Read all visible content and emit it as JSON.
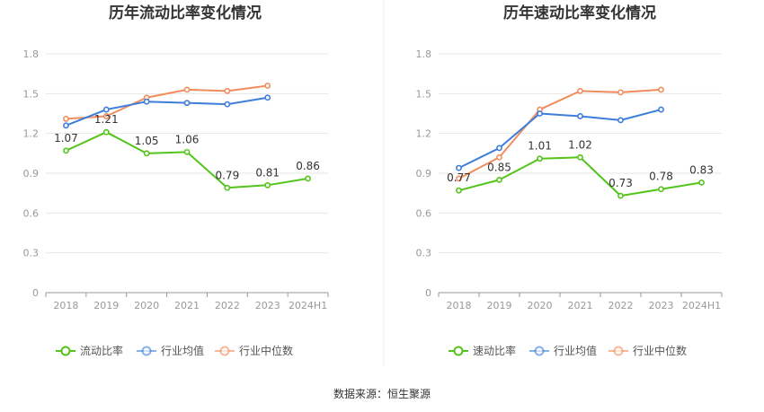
{
  "source_text": "数据来源：恒生聚源",
  "colors": {
    "company": "#52c41a",
    "industry_avg": "#3d7ddc",
    "industry_median": "#f28c5c",
    "grid": "#e6e6e6",
    "axis": "#999999"
  },
  "chart_data": [
    {
      "type": "line",
      "title": "历年流动比率变化情况",
      "categories": [
        "2018",
        "2019",
        "2020",
        "2021",
        "2022",
        "2023",
        "2024H1"
      ],
      "ylim": [
        0,
        1.8
      ],
      "yticks": [
        "0",
        "0.3",
        "0.6",
        "0.9",
        "1.2",
        "1.5",
        "1.8"
      ],
      "grid": true,
      "legend_position": "bottom",
      "series": [
        {
          "name": "流动比率",
          "values": [
            1.07,
            1.21,
            1.05,
            1.06,
            0.79,
            0.81,
            0.86
          ],
          "labels": [
            "1.07",
            "1.21",
            "1.05",
            "1.06",
            "0.79",
            "0.81",
            "0.86"
          ]
        },
        {
          "name": "行业均值",
          "values": [
            1.26,
            1.38,
            1.44,
            1.43,
            1.42,
            1.47,
            null
          ]
        },
        {
          "name": "行业中位数",
          "values": [
            1.31,
            1.33,
            1.47,
            1.53,
            1.52,
            1.56,
            null
          ]
        }
      ]
    },
    {
      "type": "line",
      "title": "历年速动比率变化情况",
      "categories": [
        "2018",
        "2019",
        "2020",
        "2021",
        "2022",
        "2023",
        "2024H1"
      ],
      "ylim": [
        0,
        1.8
      ],
      "yticks": [
        "0",
        "0.3",
        "0.6",
        "0.9",
        "1.2",
        "1.5",
        "1.8"
      ],
      "grid": true,
      "legend_position": "bottom",
      "series": [
        {
          "name": "速动比率",
          "values": [
            0.77,
            0.85,
            1.01,
            1.02,
            0.73,
            0.78,
            0.83
          ],
          "labels": [
            "0.77",
            "0.85",
            "1.01",
            "1.02",
            "0.73",
            "0.78",
            "0.83"
          ]
        },
        {
          "name": "行业均值",
          "values": [
            0.94,
            1.09,
            1.35,
            1.33,
            1.3,
            1.38,
            null
          ]
        },
        {
          "name": "行业中位数",
          "values": [
            0.86,
            1.02,
            1.38,
            1.52,
            1.51,
            1.53,
            null
          ]
        }
      ]
    }
  ]
}
